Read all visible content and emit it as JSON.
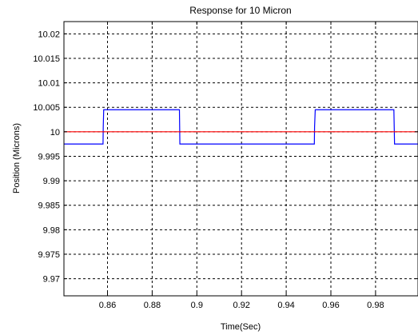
{
  "chart_data": {
    "type": "line",
    "title": "Response for 10 Micron",
    "xlabel": "Time(Sec)",
    "ylabel": "Position (Microns)",
    "xlim": [
      0.8405,
      0.999
    ],
    "ylim": [
      9.9665,
      10.0225
    ],
    "grid": true,
    "x_ticks": [
      0.86,
      0.88,
      0.9,
      0.92,
      0.94,
      0.96,
      0.98
    ],
    "x_tick_labels": [
      "0.86",
      "0.88",
      "0.9",
      "0.92",
      "0.94",
      "0.96",
      "0.98"
    ],
    "y_ticks": [
      9.97,
      9.975,
      9.98,
      9.985,
      9.99,
      9.995,
      10,
      10.005,
      10.01,
      10.015,
      10.02
    ],
    "y_tick_labels": [
      "9.97",
      "9.975",
      "9.98",
      "9.985",
      "9.99",
      "9.995",
      "10",
      "10.005",
      "10.01",
      "10.015",
      "10.02"
    ],
    "series": [
      {
        "color": "#0000ff",
        "x": [
          0.8405,
          0.858,
          0.8581,
          0.8583,
          0.8922,
          0.8924,
          0.9526,
          0.9527,
          0.953,
          0.9882,
          0.9885,
          0.999
        ],
        "y": [
          9.9975,
          9.9975,
          10.001,
          10.0045,
          10.0045,
          9.9975,
          9.9975,
          10.001,
          10.0045,
          10.0045,
          9.9975,
          9.9975
        ]
      },
      {
        "color": "#ff0000",
        "x": [
          0.8405,
          0.999
        ],
        "y": [
          10,
          10
        ]
      }
    ]
  }
}
